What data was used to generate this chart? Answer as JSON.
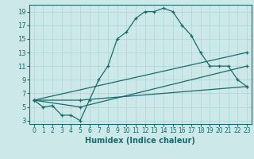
{
  "xlabel": "Humidex (Indice chaleur)",
  "bg_color": "#cce8e8",
  "line_color": "#1a6b6b",
  "grid_color": "#aad4d4",
  "xlim": [
    -0.5,
    23.5
  ],
  "ylim": [
    2.5,
    20
  ],
  "xticks": [
    0,
    1,
    2,
    3,
    4,
    5,
    6,
    7,
    8,
    9,
    10,
    11,
    12,
    13,
    14,
    15,
    16,
    17,
    18,
    19,
    20,
    21,
    22,
    23
  ],
  "yticks": [
    3,
    5,
    7,
    9,
    11,
    13,
    15,
    17,
    19
  ],
  "series": [
    {
      "x": [
        0,
        1,
        2,
        3,
        4,
        5,
        6,
        7,
        8,
        9,
        10,
        11,
        12,
        13,
        14,
        15,
        16,
        17,
        18,
        19,
        20,
        21,
        22,
        23
      ],
      "y": [
        6,
        5,
        5.2,
        3.8,
        3.8,
        3,
        6,
        9,
        11,
        15,
        16,
        18,
        19,
        19,
        19.5,
        19,
        17,
        15.5,
        13,
        11,
        11,
        11,
        9,
        8
      ]
    },
    {
      "x": [
        0,
        5,
        23
      ],
      "y": [
        6,
        6,
        8
      ]
    },
    {
      "x": [
        0,
        5,
        23
      ],
      "y": [
        6,
        5,
        11
      ]
    },
    {
      "x": [
        0,
        23
      ],
      "y": [
        6,
        13
      ]
    }
  ]
}
